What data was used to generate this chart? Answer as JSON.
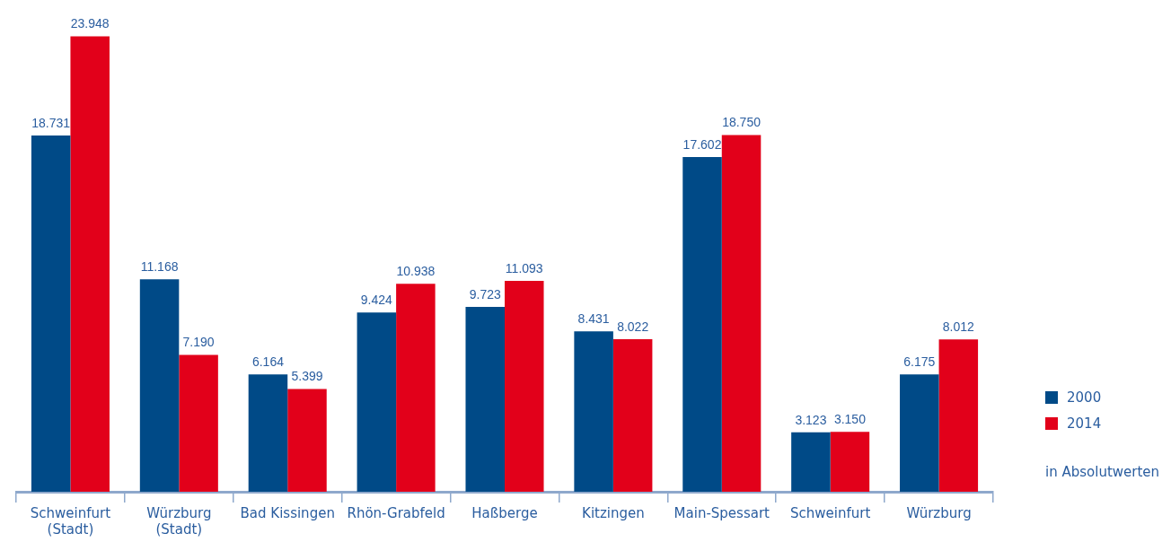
{
  "chart_data": {
    "type": "bar",
    "categories": [
      "Schweinfurt (Stadt)",
      "Würzburg (Stadt)",
      "Bad Kissingen",
      "Rhön-Grabfeld",
      "Haßberge",
      "Kitzingen",
      "Main-Spessart",
      "Schweinfurt",
      "Würzburg"
    ],
    "series": [
      {
        "name": "2000",
        "color": "#004a87",
        "values": [
          18731,
          11168,
          6164,
          9424,
          9723,
          8431,
          17602,
          3123,
          6175
        ],
        "value_labels": [
          "18.731",
          "11.168",
          "6.164",
          "9.424",
          "9.723",
          "8.431",
          "17.602",
          "3.123",
          "6.175"
        ]
      },
      {
        "name": "2014",
        "color": "#e2001a",
        "values": [
          23948,
          7190,
          5399,
          10938,
          11093,
          8022,
          18750,
          3150,
          8012
        ],
        "value_labels": [
          "23.948",
          "7.190",
          "5.399",
          "10.938",
          "11.093",
          "8.022",
          "18.750",
          "3.150",
          "8.012"
        ]
      }
    ],
    "legend": "right",
    "annotations": [
      "in Absolutwerten"
    ]
  }
}
